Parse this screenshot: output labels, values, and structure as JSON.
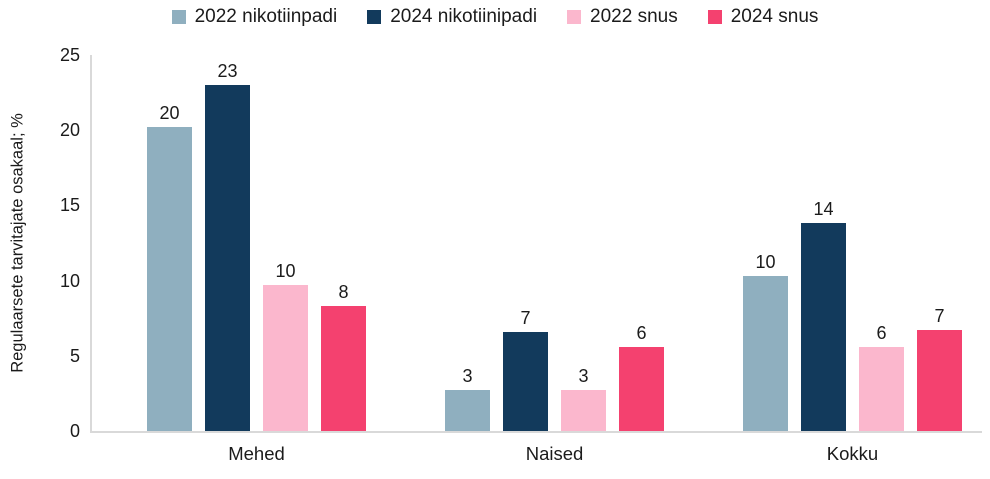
{
  "chart_data": {
    "type": "bar",
    "title": "",
    "xlabel": "",
    "ylabel": "Regulaarsete tarvitajate osakaal; %",
    "ylim": [
      0,
      25
    ],
    "yticks": [
      0,
      5,
      10,
      15,
      20,
      25
    ],
    "grid": false,
    "legend_position": "top",
    "categories": [
      "Mehed",
      "Naised",
      "Kokku"
    ],
    "series": [
      {
        "name": "2022 nikotiinpadi",
        "color": "#8FAFBF",
        "values": [
          20.2,
          2.7,
          10.3
        ],
        "labels": [
          "20",
          "3",
          "10"
        ]
      },
      {
        "name": "2024 nikotiinipadi",
        "color": "#123A5C",
        "values": [
          23.0,
          6.6,
          13.8
        ],
        "labels": [
          "23",
          "7",
          "14"
        ]
      },
      {
        "name": "2022 snus",
        "color": "#FBB7CD",
        "values": [
          9.7,
          2.7,
          5.6
        ],
        "labels": [
          "10",
          "3",
          "6"
        ]
      },
      {
        "name": "2024 snus",
        "color": "#F4416F",
        "values": [
          8.3,
          5.6,
          6.7
        ],
        "labels": [
          "8",
          "6",
          "7"
        ]
      }
    ]
  }
}
